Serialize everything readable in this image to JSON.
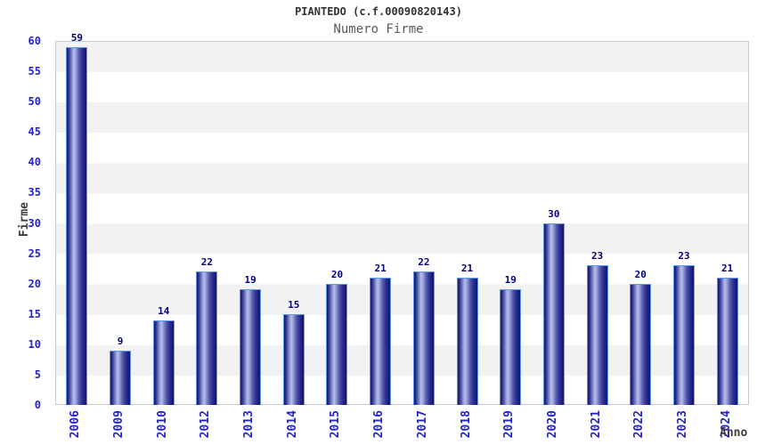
{
  "chart_data": {
    "type": "bar",
    "title": "PIANTEDO (c.f.00090820143)",
    "subtitle": "Numero Firme",
    "xlabel": "Anno",
    "ylabel": "Firme",
    "categories": [
      "2006",
      "2009",
      "2010",
      "2012",
      "2013",
      "2014",
      "2015",
      "2016",
      "2017",
      "2018",
      "2019",
      "2020",
      "2021",
      "2022",
      "2023",
      "2024"
    ],
    "values": [
      59,
      9,
      14,
      22,
      19,
      15,
      20,
      21,
      22,
      21,
      19,
      30,
      23,
      20,
      23,
      21
    ],
    "ylim": [
      0,
      60
    ],
    "yticks": [
      0,
      5,
      10,
      15,
      20,
      25,
      30,
      35,
      40,
      45,
      50,
      55,
      60
    ],
    "grid": "alternating-horizontal-bands",
    "legend": "none",
    "colors": {
      "tick_label": "#2323cc",
      "value_label": "#00007d",
      "axis_label": "#3d3d3d",
      "title": "#333333",
      "subtitle": "#5a5a5a",
      "bar_dark": "#14146e",
      "bar_highlight": "#b9bee9",
      "bar_border": "#5e97ee",
      "band_gray": "#f2f2f2",
      "band_white": "#ffffff",
      "plot_border": "#c9c9c9"
    }
  }
}
